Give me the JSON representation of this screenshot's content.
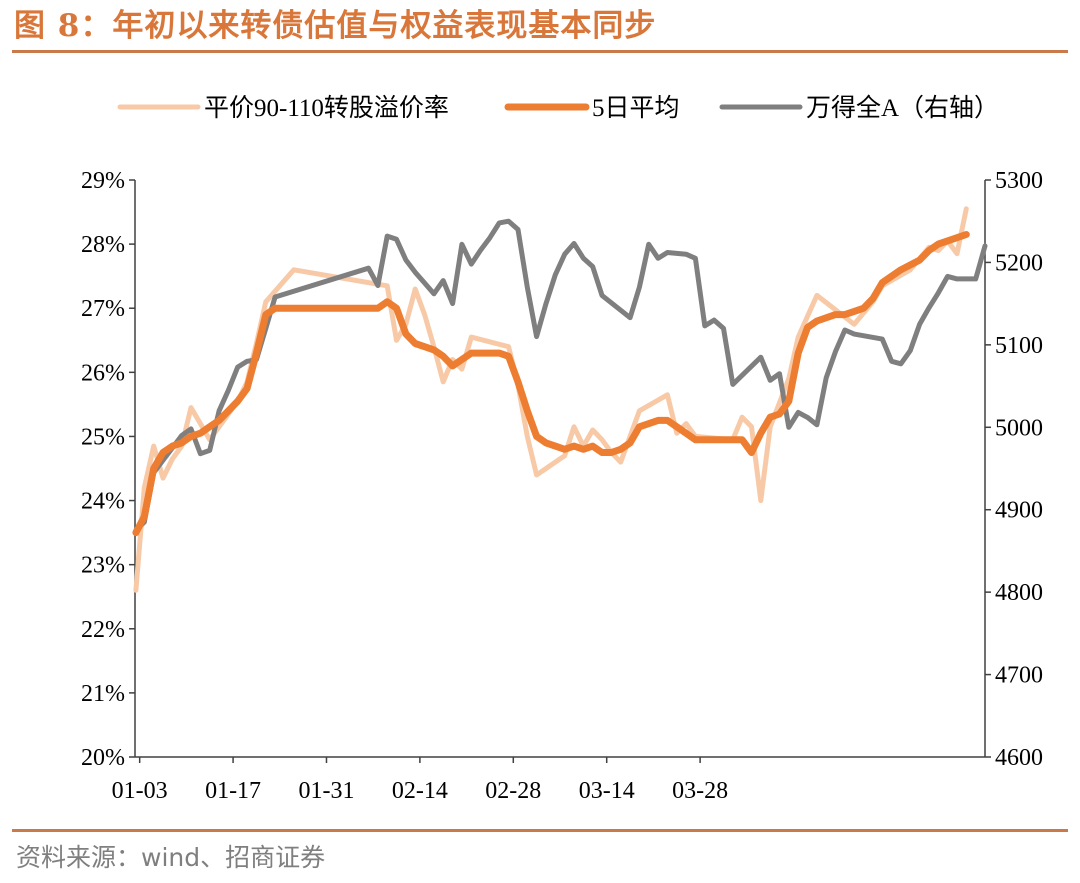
{
  "figure": {
    "title": "图 8：年初以来转债估值与权益表现基本同步",
    "source": "资料来源：wind、招商证券"
  },
  "chart_data": {
    "type": "line",
    "x_tick_labels": [
      "01-03",
      "01-17",
      "01-31",
      "02-14",
      "02-28",
      "03-14",
      "03-28"
    ],
    "left_axis": {
      "ylim": [
        20,
        29
      ],
      "ticks": [
        20,
        21,
        22,
        23,
        24,
        25,
        26,
        27,
        28,
        29
      ],
      "tick_labels": [
        "20%",
        "21%",
        "22%",
        "23%",
        "24%",
        "25%",
        "26%",
        "27%",
        "28%",
        "29%"
      ],
      "unit": "%"
    },
    "right_axis": {
      "ylim": [
        4600,
        5300
      ],
      "ticks": [
        4600,
        4700,
        4800,
        4900,
        5000,
        5100,
        5200,
        5300
      ],
      "tick_labels": [
        "4600",
        "4700",
        "4800",
        "4900",
        "5000",
        "5100",
        "5200",
        "5300"
      ]
    },
    "legend_position": "top",
    "colors": {
      "premium": "#f8c9a6",
      "ma5": "#ed7d31",
      "wind_a": "#7f7f7f"
    },
    "series": [
      {
        "name": "平价90-110转股溢价率",
        "axis": "left",
        "color": "#f8c9a6",
        "points": [
          [
            0.1,
            22.6
          ],
          [
            1,
            24.2
          ],
          [
            2,
            24.85
          ],
          [
            3,
            24.35
          ],
          [
            4,
            24.65
          ],
          [
            5,
            24.85
          ],
          [
            6,
            25.45
          ],
          [
            7,
            25.2
          ],
          [
            8,
            24.95
          ],
          [
            9,
            25.15
          ],
          [
            10,
            25.35
          ],
          [
            11,
            25.55
          ],
          [
            12,
            25.85
          ],
          [
            13,
            26.45
          ],
          [
            14,
            27.1
          ],
          [
            17,
            27.6
          ],
          [
            27,
            27.35
          ],
          [
            28,
            26.5
          ],
          [
            29,
            26.75
          ],
          [
            30,
            27.3
          ],
          [
            31,
            26.9
          ],
          [
            32,
            26.4
          ],
          [
            33,
            25.85
          ],
          [
            34,
            26.2
          ],
          [
            35,
            26.05
          ],
          [
            36,
            26.55
          ],
          [
            40,
            26.4
          ],
          [
            41,
            25.8
          ],
          [
            42,
            25.0
          ],
          [
            43,
            24.4
          ],
          [
            46,
            24.7
          ],
          [
            47,
            25.15
          ],
          [
            48,
            24.85
          ],
          [
            49,
            25.1
          ],
          [
            50,
            24.95
          ],
          [
            51,
            24.75
          ],
          [
            52,
            24.6
          ],
          [
            53,
            25.0
          ],
          [
            54,
            25.4
          ],
          [
            57,
            25.65
          ],
          [
            58,
            25.05
          ],
          [
            59,
            25.2
          ],
          [
            60,
            25.0
          ],
          [
            64,
            24.95
          ],
          [
            65,
            25.3
          ],
          [
            66,
            25.15
          ],
          [
            67,
            24.0
          ],
          [
            68,
            25.15
          ],
          [
            70,
            25.9
          ],
          [
            71,
            26.55
          ],
          [
            73,
            27.2
          ],
          [
            77,
            26.75
          ],
          [
            79,
            27.1
          ],
          [
            80,
            27.35
          ],
          [
            83,
            27.6
          ],
          [
            85,
            27.95
          ],
          [
            86,
            27.9
          ],
          [
            87,
            28.05
          ],
          [
            88,
            27.85
          ],
          [
            89,
            28.55
          ]
        ]
      },
      {
        "name": "5日平均",
        "axis": "left",
        "color": "#ed7d31",
        "points": [
          [
            0.1,
            23.5
          ],
          [
            1,
            23.75
          ],
          [
            2,
            24.5
          ],
          [
            3,
            24.75
          ],
          [
            4,
            24.85
          ],
          [
            5,
            24.9
          ],
          [
            6,
            25.0
          ],
          [
            7,
            25.05
          ],
          [
            8,
            25.15
          ],
          [
            9,
            25.25
          ],
          [
            10,
            25.4
          ],
          [
            11,
            25.55
          ],
          [
            12,
            25.75
          ],
          [
            13,
            26.3
          ],
          [
            14,
            26.9
          ],
          [
            15,
            27.0
          ],
          [
            26,
            27.0
          ],
          [
            27,
            27.1
          ],
          [
            28,
            27.0
          ],
          [
            29,
            26.6
          ],
          [
            30,
            26.45
          ],
          [
            31,
            26.4
          ],
          [
            32,
            26.35
          ],
          [
            33,
            26.25
          ],
          [
            34,
            26.1
          ],
          [
            35,
            26.2
          ],
          [
            36,
            26.3
          ],
          [
            39,
            26.3
          ],
          [
            40,
            26.25
          ],
          [
            41,
            25.85
          ],
          [
            42,
            25.4
          ],
          [
            43,
            25.0
          ],
          [
            44,
            24.9
          ],
          [
            45,
            24.85
          ],
          [
            46,
            24.8
          ],
          [
            47,
            24.85
          ],
          [
            48,
            24.8
          ],
          [
            49,
            24.85
          ],
          [
            50,
            24.75
          ],
          [
            51,
            24.75
          ],
          [
            52,
            24.8
          ],
          [
            53,
            24.9
          ],
          [
            54,
            25.15
          ],
          [
            56,
            25.25
          ],
          [
            57,
            25.25
          ],
          [
            58,
            25.15
          ],
          [
            59,
            25.05
          ],
          [
            60,
            24.95
          ],
          [
            64,
            24.95
          ],
          [
            65,
            24.95
          ],
          [
            66,
            24.75
          ],
          [
            67,
            25.05
          ],
          [
            68,
            25.3
          ],
          [
            69,
            25.35
          ],
          [
            70,
            25.55
          ],
          [
            71,
            26.3
          ],
          [
            72,
            26.7
          ],
          [
            73,
            26.8
          ],
          [
            75,
            26.9
          ],
          [
            76,
            26.9
          ],
          [
            77,
            26.95
          ],
          [
            78,
            27.0
          ],
          [
            79,
            27.15
          ],
          [
            80,
            27.4
          ],
          [
            82,
            27.6
          ],
          [
            84,
            27.75
          ],
          [
            85,
            27.9
          ],
          [
            86,
            28.0
          ],
          [
            88,
            28.1
          ],
          [
            89,
            28.15
          ]
        ]
      },
      {
        "name": "万得全A（右轴）",
        "axis": "right",
        "color": "#7f7f7f",
        "points": [
          [
            0.1,
            4875
          ],
          [
            1,
            4885
          ],
          [
            2,
            4945
          ],
          [
            3,
            4960
          ],
          [
            4,
            4975
          ],
          [
            5,
            4990
          ],
          [
            6,
            4998
          ],
          [
            7,
            4968
          ],
          [
            8,
            4972
          ],
          [
            9,
            5020
          ],
          [
            10,
            5045
          ],
          [
            11,
            5073
          ],
          [
            12,
            5080
          ],
          [
            13,
            5082
          ],
          [
            14,
            5120
          ],
          [
            15,
            5158
          ],
          [
            25,
            5193
          ],
          [
            26,
            5172
          ],
          [
            27,
            5232
          ],
          [
            28,
            5228
          ],
          [
            29,
            5203
          ],
          [
            30,
            5188
          ],
          [
            31,
            5175
          ],
          [
            32,
            5162
          ],
          [
            33,
            5178
          ],
          [
            34,
            5150
          ],
          [
            35,
            5222
          ],
          [
            36,
            5198
          ],
          [
            37,
            5215
          ],
          [
            38,
            5230
          ],
          [
            39,
            5248
          ],
          [
            40,
            5250
          ],
          [
            41,
            5240
          ],
          [
            42,
            5170
          ],
          [
            43,
            5110
          ],
          [
            44,
            5150
          ],
          [
            45,
            5185
          ],
          [
            46,
            5210
          ],
          [
            47,
            5223
          ],
          [
            48,
            5205
          ],
          [
            49,
            5195
          ],
          [
            50,
            5160
          ],
          [
            53,
            5133
          ],
          [
            54,
            5170
          ],
          [
            55,
            5222
          ],
          [
            56,
            5205
          ],
          [
            57,
            5212
          ],
          [
            59,
            5210
          ],
          [
            60,
            5205
          ],
          [
            61,
            5123
          ],
          [
            62,
            5130
          ],
          [
            63,
            5120
          ],
          [
            64,
            5052
          ],
          [
            67,
            5085
          ],
          [
            68,
            5057
          ],
          [
            69,
            5065
          ],
          [
            70,
            5000
          ],
          [
            71,
            5018
          ],
          [
            72,
            5012
          ],
          [
            73,
            5003
          ],
          [
            74,
            5060
          ],
          [
            75,
            5092
          ],
          [
            76,
            5118
          ],
          [
            77,
            5113
          ],
          [
            80,
            5107
          ],
          [
            81,
            5080
          ],
          [
            82,
            5077
          ],
          [
            83,
            5093
          ],
          [
            84,
            5125
          ],
          [
            85,
            5145
          ],
          [
            86,
            5163
          ],
          [
            87,
            5183
          ],
          [
            88,
            5180
          ],
          [
            90,
            5180
          ],
          [
            91,
            5220
          ]
        ]
      }
    ]
  }
}
